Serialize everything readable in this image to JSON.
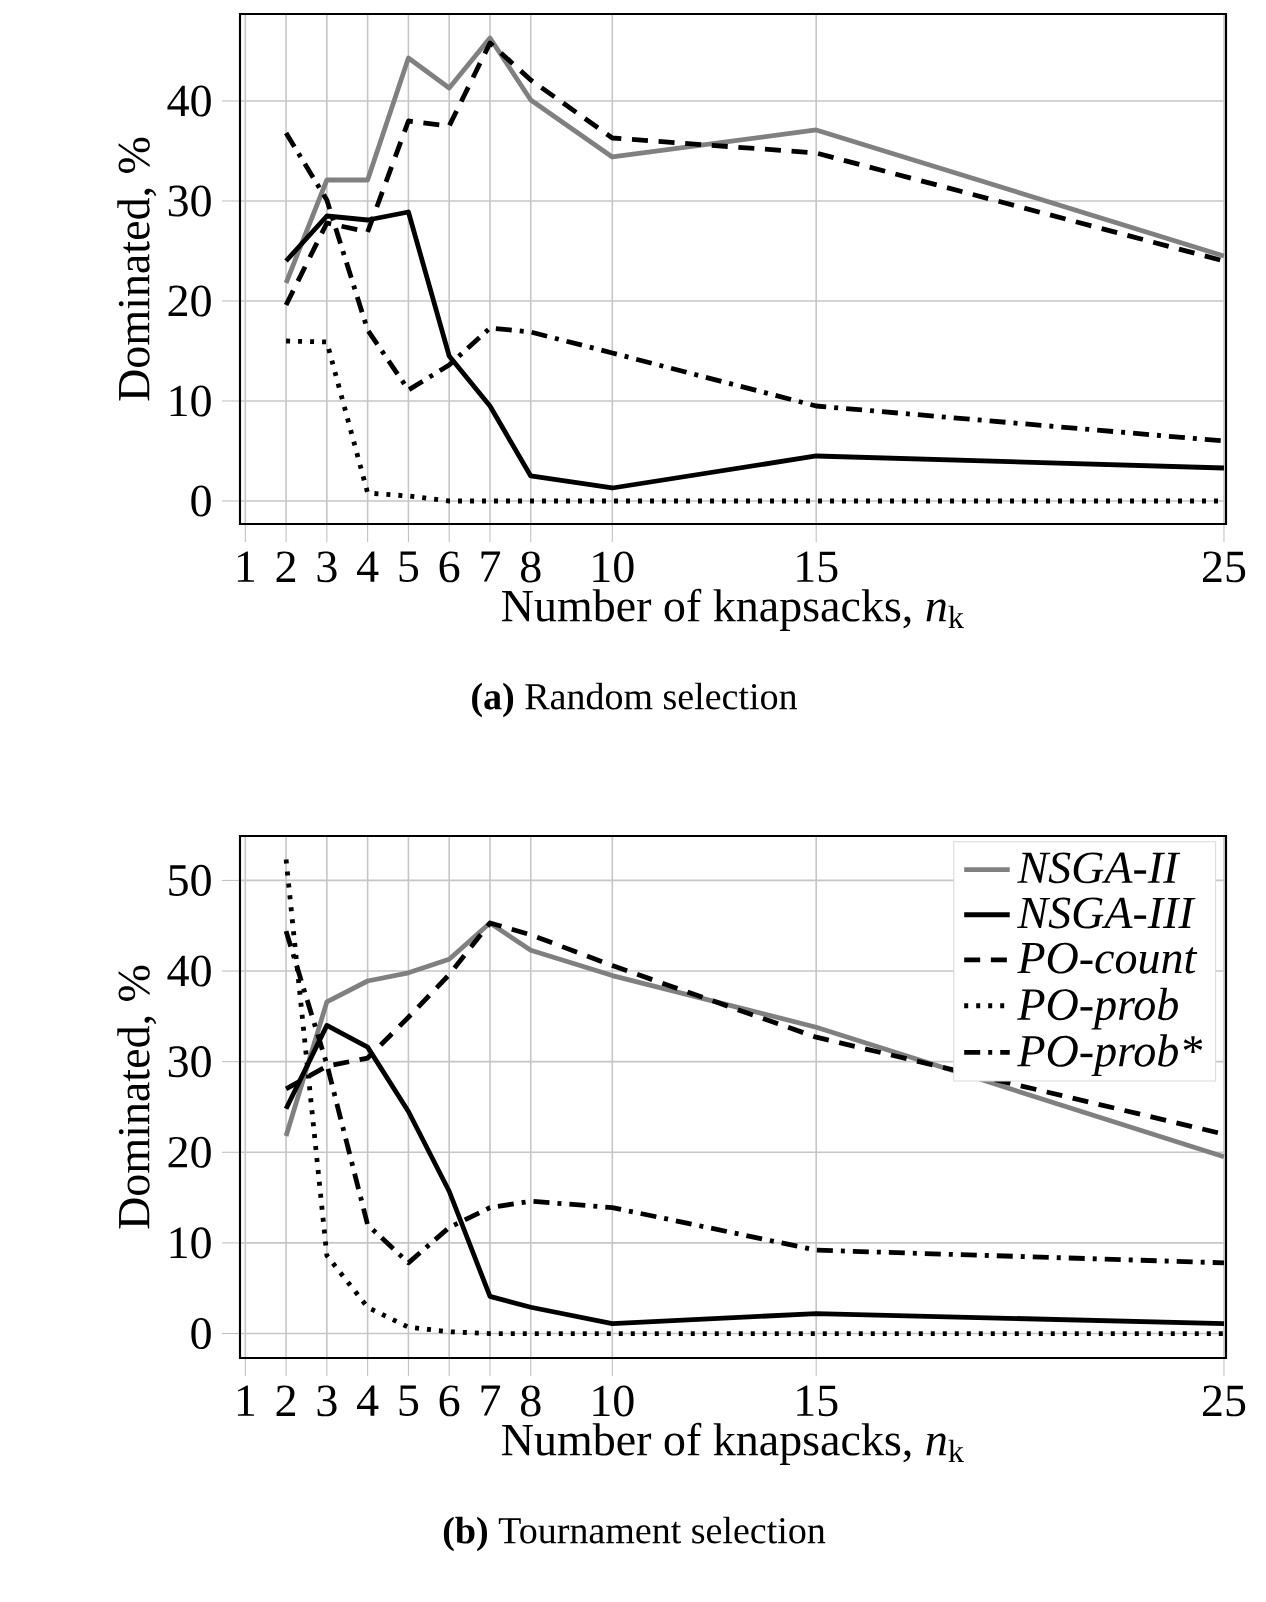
{
  "chart_data": [
    {
      "type": "line",
      "xlabel": "Number of knapsacks, *n*$_{k}$",
      "ylabel": "Dominated, %",
      "annotations": [
        "**(a)** Random selection"
      ],
      "grid": true,
      "xlim": [
        0.87,
        25.05
      ],
      "ylim": [
        -2.3,
        48.7
      ],
      "xticks": [
        1,
        2,
        3,
        4,
        5,
        6,
        7,
        8,
        10,
        15,
        25
      ],
      "yticks": [
        0,
        10,
        20,
        30,
        40
      ],
      "x": [
        2,
        3,
        4,
        5,
        6,
        7,
        8,
        10,
        15,
        25
      ],
      "series": [
        {
          "color": "#808080",
          "line_style": "solid",
          "values": [
            21.8,
            32.1,
            32.1,
            44.3,
            41.3,
            46.3,
            40.1,
            34.4,
            37.1,
            24.5
          ]
        },
        {
          "color": "#000000",
          "line_style": "solid",
          "values": [
            24,
            28.5,
            28.1,
            28.9,
            14.5,
            9.5,
            2.5,
            1.3,
            4.5,
            3.3
          ]
        },
        {
          "color": "#000000",
          "line_style": "dashed",
          "values": [
            19.6,
            27.8,
            26.9,
            38,
            37.5,
            45.8,
            42.1,
            36.3,
            34.8,
            24
          ]
        },
        {
          "color": "#000000",
          "line_style": "dotted",
          "values": [
            16,
            15.9,
            0.8,
            0.5,
            0,
            0,
            0,
            0,
            0,
            0
          ]
        },
        {
          "color": "#000000",
          "line_style": "dashdot",
          "values": [
            36.8,
            30.1,
            17.1,
            11.1,
            13.6,
            17.3,
            16.9,
            14.8,
            9.5,
            6
          ]
        }
      ]
    },
    {
      "type": "line",
      "xlabel": "Number of knapsacks, *n*$_{k}$",
      "ylabel": "Dominated, %",
      "annotations": [
        "**(b)** Tournament selection"
      ],
      "grid": true,
      "legend": "top right",
      "xlim": [
        0.87,
        25.05
      ],
      "ylim": [
        -2.7,
        54.9
      ],
      "xticks": [
        1,
        2,
        3,
        4,
        5,
        6,
        7,
        8,
        10,
        15,
        25
      ],
      "yticks": [
        0,
        10,
        20,
        30,
        40,
        50
      ],
      "x": [
        2,
        3,
        4,
        5,
        6,
        7,
        8,
        10,
        15,
        25
      ],
      "series": [
        {
          "name": "NSGA-II",
          "color": "#808080",
          "line_style": "solid",
          "values": [
            21.8,
            36.6,
            38.9,
            39.8,
            41.3,
            45.3,
            42.3,
            39.5,
            33.8,
            19.5
          ]
        },
        {
          "name": "NSGA-III",
          "color": "#000000",
          "line_style": "solid",
          "values": [
            24.8,
            34,
            31.6,
            24.5,
            15.7,
            4.1,
            2.9,
            1.1,
            2.2,
            1.1
          ]
        },
        {
          "name": "PO-count",
          "color": "#000000",
          "line_style": "dashed",
          "values": [
            27,
            29.5,
            30.4,
            34.9,
            39.6,
            45.3,
            44,
            40.6,
            32.7,
            22
          ]
        },
        {
          "name": "PO-prob",
          "color": "#000000",
          "line_style": "dotted",
          "values": [
            52.3,
            8.6,
            2.9,
            0.7,
            0.2,
            0,
            0,
            0,
            0,
            0
          ]
        },
        {
          "name": "PO-prob*",
          "color": "#000000",
          "line_style": "dashdot",
          "values": [
            44.4,
            29.7,
            12,
            7.8,
            11.7,
            13.9,
            14.6,
            13.9,
            9.2,
            7.8
          ]
        }
      ]
    }
  ]
}
